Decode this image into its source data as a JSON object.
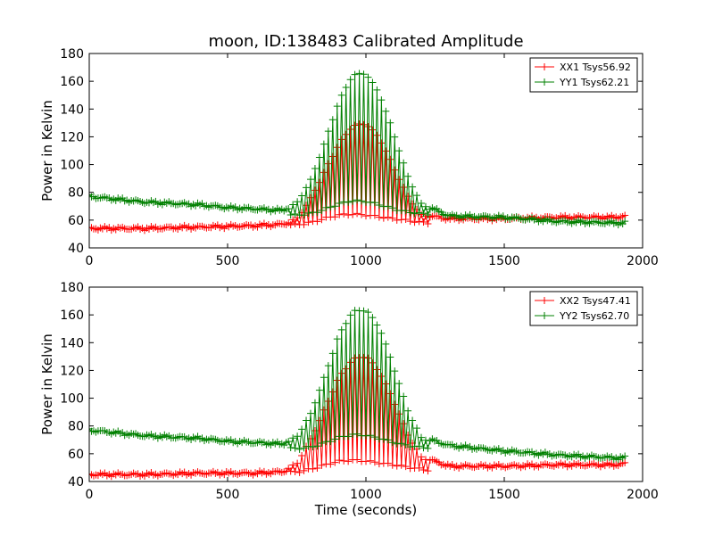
{
  "figure_title": "moon, ID:138483 Calibrated Amplitude",
  "chart_data": [
    {
      "type": "line",
      "title": "moon, ID:138483 Calibrated Amplitude",
      "xlabel": "",
      "ylabel": "Power in Kelvin",
      "xlim": [
        0,
        2000
      ],
      "ylim": [
        40,
        180
      ],
      "xticks": [
        "0",
        "500",
        "1000",
        "1500",
        "2000"
      ],
      "yticks": [
        "40",
        "60",
        "80",
        "100",
        "120",
        "140",
        "160",
        "180"
      ],
      "grid": false,
      "legend_position": "top-right",
      "series": [
        {
          "name": "XX1 Tsys56.92",
          "color": "#ff0000",
          "marker": "plus",
          "x": [
            0,
            200,
            400,
            600,
            700,
            750,
            800,
            850,
            900,
            950,
            1000,
            1050,
            1100,
            1150,
            1200,
            1300,
            1500,
            1700,
            1900,
            1940
          ],
          "y": [
            54,
            54,
            55,
            56,
            57,
            60,
            75,
            95,
            115,
            128,
            129,
            118,
            98,
            78,
            64,
            61,
            61,
            62,
            62,
            63
          ]
        },
        {
          "name": "YY1 Tsys62.21",
          "color": "#008000",
          "marker": "plus",
          "x": [
            0,
            100,
            200,
            300,
            400,
            500,
            600,
            700,
            750,
            800,
            850,
            900,
            950,
            1000,
            1050,
            1100,
            1150,
            1200,
            1300,
            1500,
            1700,
            1900,
            1940
          ],
          "y": [
            77,
            75,
            73,
            72,
            71,
            69,
            68,
            67,
            72,
            88,
            115,
            145,
            165,
            166,
            150,
            122,
            92,
            72,
            63,
            62,
            59,
            58,
            58
          ]
        }
      ]
    },
    {
      "type": "line",
      "title": "",
      "xlabel": "Time (seconds)",
      "ylabel": "Power in Kelvin",
      "xlim": [
        0,
        2000
      ],
      "ylim": [
        40,
        180
      ],
      "xticks": [
        "0",
        "500",
        "1000",
        "1500",
        "2000"
      ],
      "yticks": [
        "40",
        "60",
        "80",
        "100",
        "120",
        "140",
        "160",
        "180"
      ],
      "grid": false,
      "legend_position": "top-right",
      "series": [
        {
          "name": "XX2 Tsys47.41",
          "color": "#ff0000",
          "marker": "plus",
          "x": [
            0,
            200,
            400,
            600,
            700,
            750,
            800,
            850,
            900,
            950,
            1000,
            1050,
            1100,
            1150,
            1200,
            1300,
            1500,
            1700,
            1900,
            1940
          ],
          "y": [
            45,
            45,
            46,
            46,
            47,
            52,
            70,
            92,
            115,
            128,
            130,
            118,
            98,
            75,
            58,
            51,
            51,
            52,
            52,
            53
          ]
        },
        {
          "name": "YY2 Tsys62.70",
          "color": "#008000",
          "marker": "plus",
          "x": [
            0,
            100,
            200,
            300,
            400,
            500,
            600,
            700,
            750,
            800,
            850,
            900,
            950,
            1000,
            1050,
            1100,
            1150,
            1200,
            1300,
            1500,
            1700,
            1900,
            1940
          ],
          "y": [
            77,
            75,
            73,
            72,
            71,
            69,
            68,
            67,
            72,
            88,
            115,
            145,
            163,
            164,
            150,
            122,
            92,
            72,
            66,
            62,
            59,
            57,
            57
          ]
        }
      ]
    }
  ]
}
